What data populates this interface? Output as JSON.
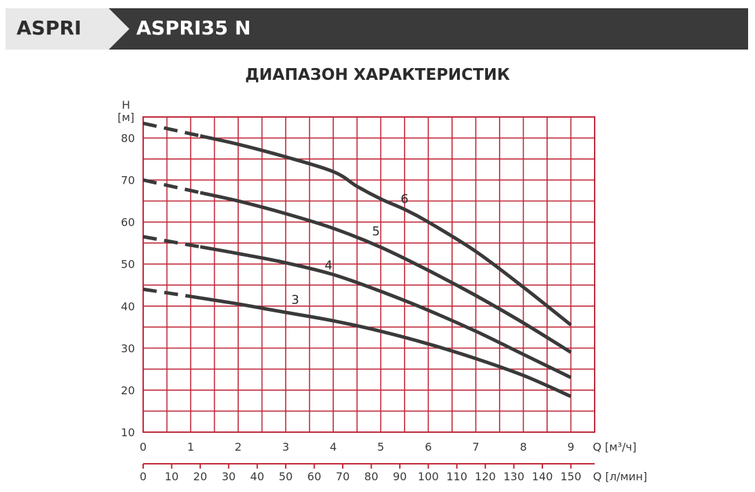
{
  "header": {
    "brand": "ASPRI",
    "model": "ASPRI35 N"
  },
  "chart_data": {
    "type": "line",
    "title": "ДИАПАЗОН ХАРАКТЕРИСТИК",
    "ylabel_top": "H",
    "ylabel_unit": "[м]",
    "xlabel": "Q [м³/ч]",
    "x2label": "Q [л/мин]",
    "xlim": [
      0,
      9.5
    ],
    "ylim": [
      10,
      85
    ],
    "x_ticks": [
      "0",
      "1",
      "2",
      "3",
      "4",
      "5",
      "6",
      "7",
      "8",
      "9"
    ],
    "x2_ticks": [
      "0",
      "10",
      "20",
      "30",
      "40",
      "50",
      "60",
      "70",
      "80",
      "90",
      "100",
      "110",
      "120",
      "130",
      "140",
      "150"
    ],
    "y_ticks": [
      "10",
      "20",
      "30",
      "40",
      "50",
      "60",
      "70",
      "80"
    ],
    "grid": true,
    "grid_color": "#c0283a",
    "line_color": "#3a3a3a",
    "series": [
      {
        "name": "3",
        "dashed_until": 1.0,
        "x": [
          0,
          1,
          2,
          3,
          4,
          5,
          6,
          7,
          8,
          9
        ],
        "y": [
          44,
          42.3,
          40.5,
          38.5,
          36.5,
          34,
          31,
          27.5,
          23.5,
          18.5
        ],
        "label_at": [
          3.2,
          41.5
        ]
      },
      {
        "name": "4",
        "dashed_until": 1.2,
        "x": [
          0,
          1,
          2,
          3,
          4,
          5,
          6,
          7,
          8,
          9
        ],
        "y": [
          56.5,
          54.5,
          52.5,
          50.3,
          47.5,
          43.5,
          39,
          34,
          28.5,
          23
        ],
        "label_at": [
          3.9,
          49.7
        ]
      },
      {
        "name": "5",
        "dashed_until": 1.2,
        "x": [
          0,
          1,
          2,
          3,
          4,
          5,
          6,
          7,
          8,
          9
        ],
        "y": [
          70,
          67.5,
          65,
          62,
          58.5,
          54,
          48.5,
          42.5,
          36,
          29
        ],
        "label_at": [
          4.9,
          57.8
        ]
      },
      {
        "name": "6",
        "dashed_until": 1.2,
        "x": [
          0,
          1,
          2,
          3,
          4,
          4.5,
          5,
          5.5,
          6,
          7,
          8,
          9
        ],
        "y": [
          83.5,
          81,
          78.5,
          75.5,
          72,
          68.5,
          65.5,
          63,
          60,
          53,
          44.5,
          35.5
        ],
        "label_at": [
          5.5,
          65.5
        ]
      }
    ]
  }
}
